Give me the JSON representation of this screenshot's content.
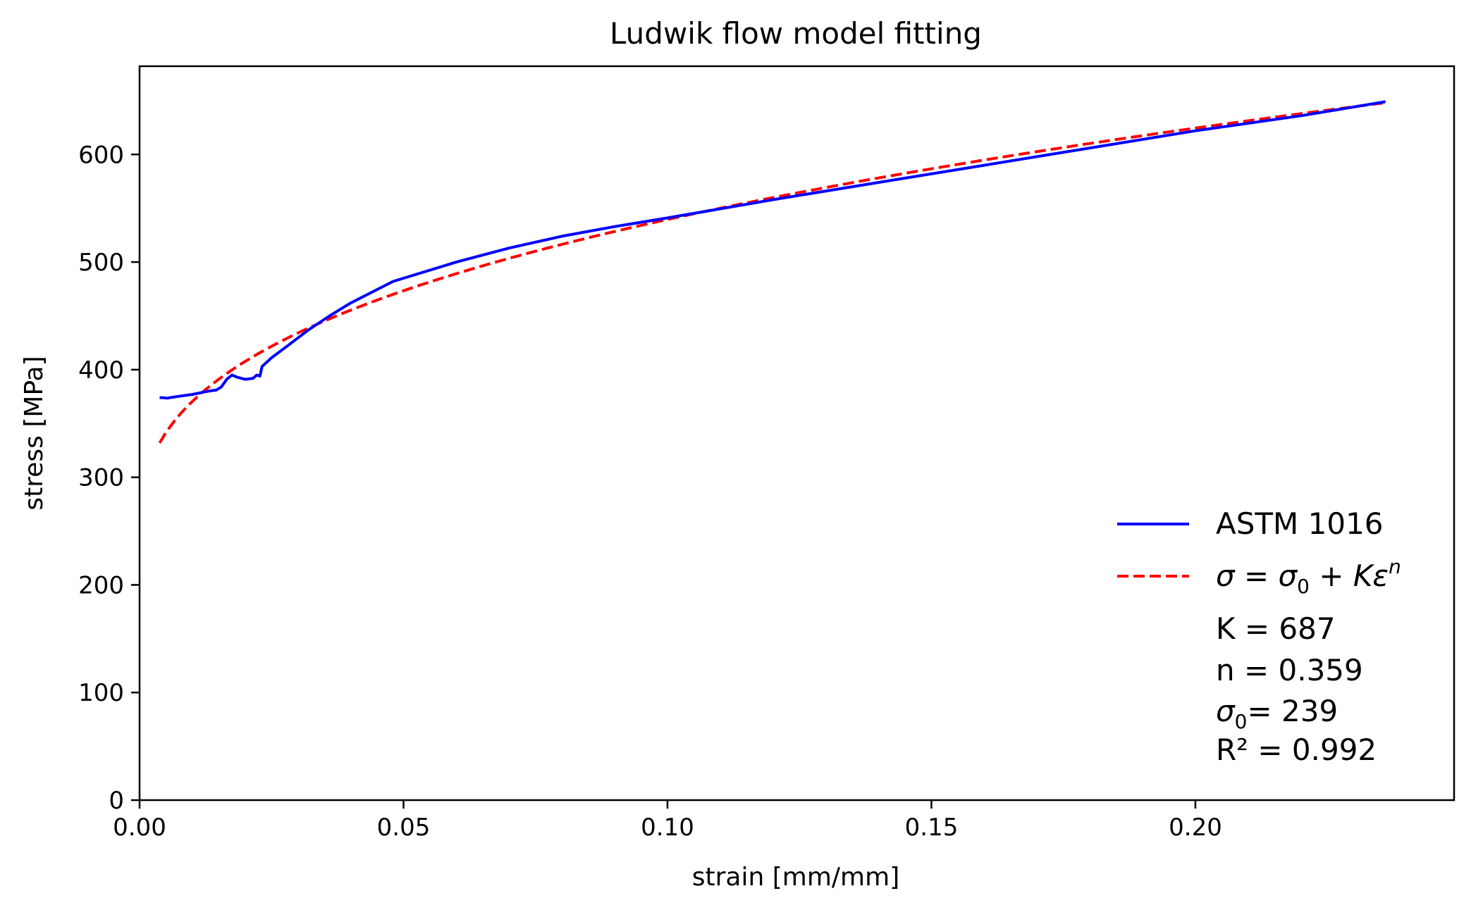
{
  "chart_data": {
    "type": "line",
    "title": "Ludwik flow model fitting",
    "xlabel": "strain [mm/mm]",
    "ylabel": "stress [MPa]",
    "xlim": [
      0.0,
      0.249
    ],
    "ylim": [
      0,
      682
    ],
    "xticks": [
      0.0,
      0.05,
      0.1,
      0.15,
      0.2
    ],
    "xtick_labels": [
      "0.00",
      "0.05",
      "0.10",
      "0.15",
      "0.20"
    ],
    "yticks": [
      0,
      100,
      200,
      300,
      400,
      500,
      600
    ],
    "ytick_labels": [
      "0",
      "100",
      "200",
      "300",
      "400",
      "500",
      "600"
    ],
    "grid": false,
    "legend_position": "bottom-right",
    "series": [
      {
        "name": "ASTM 1016",
        "color": "#0000ff",
        "style": "solid",
        "points": [
          [
            0.0038,
            374
          ],
          [
            0.0045,
            374
          ],
          [
            0.0052,
            373.5
          ],
          [
            0.007,
            375
          ],
          [
            0.01,
            377
          ],
          [
            0.013,
            380
          ],
          [
            0.0145,
            381
          ],
          [
            0.0155,
            384
          ],
          [
            0.0165,
            391
          ],
          [
            0.0175,
            395
          ],
          [
            0.0185,
            393
          ],
          [
            0.02,
            391
          ],
          [
            0.0215,
            392
          ],
          [
            0.0222,
            395
          ],
          [
            0.0228,
            394
          ],
          [
            0.0232,
            403
          ],
          [
            0.025,
            411
          ],
          [
            0.028,
            422
          ],
          [
            0.032,
            437
          ],
          [
            0.036,
            450
          ],
          [
            0.04,
            462
          ],
          [
            0.044,
            472
          ],
          [
            0.048,
            482
          ],
          [
            0.05,
            485
          ],
          [
            0.06,
            500
          ],
          [
            0.07,
            513
          ],
          [
            0.08,
            524
          ],
          [
            0.09,
            533
          ],
          [
            0.1,
            541
          ],
          [
            0.12,
            558
          ],
          [
            0.14,
            574
          ],
          [
            0.16,
            590
          ],
          [
            0.18,
            606
          ],
          [
            0.2,
            622
          ],
          [
            0.22,
            636
          ],
          [
            0.236,
            649
          ]
        ]
      },
      {
        "name": "σ = σ0 + Kε^n",
        "color": "#ff0000",
        "style": "dashed",
        "model": {
          "K": 687,
          "n": 0.359,
          "sigma0": 239
        },
        "x_range": [
          0.0038,
          0.236
        ]
      }
    ],
    "annotation_lines": [
      "K = 687",
      "n = 0.359",
      "= 239",
      "R² = 0.992"
    ]
  }
}
